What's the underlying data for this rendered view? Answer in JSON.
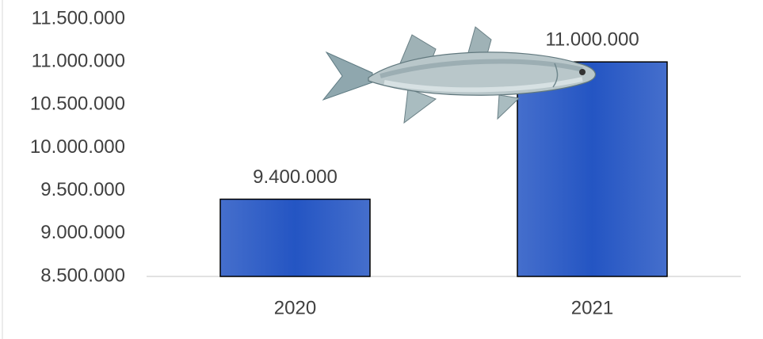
{
  "chart_data": {
    "type": "bar",
    "categories": [
      "2020",
      "2021"
    ],
    "values": [
      9400000,
      11000000
    ],
    "value_labels": [
      "9.400.000",
      "11.000.000"
    ],
    "color": "#2455c3",
    "ylim": [
      8500000,
      11500000
    ],
    "yticks": [
      {
        "value": 8500000,
        "label": "8.500.000"
      },
      {
        "value": 9000000,
        "label": "9.000.000"
      },
      {
        "value": 9500000,
        "label": "9.500.000"
      },
      {
        "value": 10000000,
        "label": "10.000.000"
      },
      {
        "value": 10500000,
        "label": "10.500.000"
      },
      {
        "value": 11000000,
        "label": "11.000.000"
      },
      {
        "value": 11500000,
        "label": "11.500.000"
      }
    ],
    "grid": false
  }
}
